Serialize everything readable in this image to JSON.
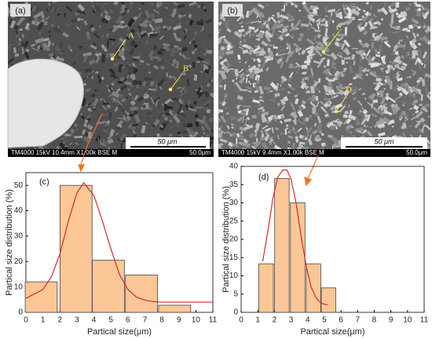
{
  "images": [
    {
      "label": "(a)",
      "points": [
        {
          "name": "A"
        },
        {
          "name": "B"
        }
      ],
      "info": "TM4000 15kV 10.4mm X1.00k BSE M",
      "scale": "50.0μm",
      "bar_label": "50 μm"
    },
    {
      "label": "(b)",
      "points": [
        {
          "name": "C"
        },
        {
          "name": "D"
        }
      ],
      "info": "TM4000 15kV 9.4mm X1.00k BSE M",
      "scale": "50.0μm",
      "bar_label": "50 μm"
    }
  ],
  "chart_data": [
    {
      "type": "bar",
      "label": "(c)",
      "xlabel": "Partical size(μm)",
      "ylabel": "Partical size distribution (%)",
      "x": [
        0.9,
        2.95,
        4.85,
        6.8,
        8.75
      ],
      "values": [
        12,
        50,
        20.5,
        14.7,
        2.8
      ],
      "color": "#fcc797",
      "curve": {
        "color": "#d42a2a",
        "x": [
          0,
          1,
          1.5,
          2,
          2.5,
          3,
          3.4,
          4,
          4.5,
          5,
          5.5,
          6,
          6.5,
          7,
          7.5,
          8,
          9,
          10,
          11
        ],
        "values": [
          5.5,
          9,
          14,
          23,
          36,
          47,
          51,
          46,
          36,
          25,
          15,
          9,
          6,
          4.8,
          4.2,
          4,
          4,
          4,
          4
        ]
      },
      "xlim": [
        0,
        11
      ],
      "ylim": [
        0,
        55
      ],
      "xticks": [
        0,
        1,
        2,
        3,
        4,
        5,
        6,
        7,
        8,
        9,
        10,
        11
      ],
      "yticks": [
        0,
        10,
        20,
        30,
        40,
        50
      ]
    },
    {
      "type": "bar",
      "label": "(d)",
      "xlabel": "Partical size(μm)",
      "ylabel": "Partical size distribution (%)",
      "x": [
        1.5,
        2.45,
        3.4,
        4.35,
        5.25
      ],
      "values": [
        13.3,
        36.7,
        30,
        13.3,
        6.7
      ],
      "color": "#fcc797",
      "curve": {
        "color": "#d42a2a",
        "x": [
          1.3,
          1.6,
          1.9,
          2.2,
          2.5,
          2.75,
          3,
          3.3,
          3.6,
          3.9,
          4.2,
          4.5,
          4.8,
          5.2
        ],
        "values": [
          14,
          22,
          31,
          37,
          39,
          39,
          36.5,
          30,
          21,
          13,
          7,
          4,
          2.5,
          2
        ]
      },
      "xlim": [
        0,
        11
      ],
      "ylim": [
        0,
        40
      ],
      "xticks": [
        0,
        1,
        2,
        3,
        4,
        5,
        6,
        7,
        8,
        9,
        10,
        11
      ],
      "yticks": [
        0,
        5,
        10,
        15,
        20,
        25,
        30,
        35,
        40
      ]
    }
  ]
}
